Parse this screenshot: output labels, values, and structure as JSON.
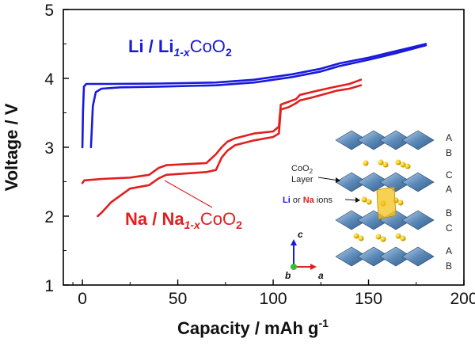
{
  "chart_data": {
    "type": "line",
    "xlabel": "Capacity  /  mAh g",
    "xlabel_sup": "-1",
    "ylabel": "Voltage  /  V",
    "xlim": [
      -10,
      200
    ],
    "ylim": [
      1,
      5
    ],
    "xticks": [
      0,
      50,
      100,
      150,
      200
    ],
    "yticks": [
      1,
      2,
      3,
      4,
      5
    ],
    "grid": false,
    "series": [
      {
        "name": "Li / Li1-xCoO2",
        "color": "#1a1adb",
        "curves": [
          {
            "x": [
              0,
              0.3,
              0.8,
              2,
              5,
              15,
              40,
              70,
              90,
              110,
              125,
              135,
              150,
              165,
              180
            ],
            "y": [
              3.0,
              3.5,
              3.88,
              3.92,
              3.92,
              3.92,
              3.925,
              3.94,
              3.98,
              4.06,
              4.14,
              4.22,
              4.3,
              4.4,
              4.5
            ]
          },
          {
            "x": [
              180,
              165,
              150,
              135,
              125,
              110,
              90,
              70,
              40,
              20,
              10,
              7,
              5.5,
              5,
              4.5
            ],
            "y": [
              4.48,
              4.37,
              4.27,
              4.18,
              4.1,
              4.02,
              3.94,
              3.9,
              3.88,
              3.87,
              3.85,
              3.8,
              3.6,
              3.3,
              3.0
            ]
          }
        ]
      },
      {
        "name": "Na / Na1-xCoO2",
        "color": "#e21f1f",
        "curves": [
          {
            "x": [
              0,
              1,
              10,
              25,
              35,
              40,
              44,
              65,
              70,
              73,
              76,
              80,
              90,
              100,
              103,
              104,
              108,
              112,
              114,
              120,
              128,
              133,
              140,
              146
            ],
            "y": [
              2.48,
              2.52,
              2.54,
              2.56,
              2.6,
              2.7,
              2.74,
              2.77,
              2.9,
              3.0,
              3.08,
              3.13,
              3.2,
              3.23,
              3.3,
              3.62,
              3.66,
              3.7,
              3.76,
              3.8,
              3.85,
              3.88,
              3.92,
              3.98
            ]
          },
          {
            "x": [
              146,
              140,
              133,
              128,
              120,
              114,
              112,
              108,
              104,
              103,
              100,
              90,
              80,
              76,
              73,
              70,
              65,
              44,
              40,
              35,
              25,
              15,
              10,
              8
            ],
            "y": [
              3.9,
              3.85,
              3.82,
              3.78,
              3.72,
              3.68,
              3.64,
              3.58,
              3.55,
              3.2,
              3.15,
              3.1,
              3.03,
              2.95,
              2.85,
              2.67,
              2.64,
              2.6,
              2.55,
              2.45,
              2.4,
              2.2,
              2.05,
              2.0
            ]
          }
        ]
      }
    ]
  },
  "annotations": {
    "li_label": {
      "prefix": "Li / Li",
      "sub": "1-x",
      "suffix": "CoO",
      "sub2": "2"
    },
    "na_label": {
      "prefix": "Na / Na",
      "sub": "1-x",
      "suffix": "CoO",
      "sub2": "2"
    }
  },
  "structure": {
    "stacking_right": [
      "A",
      "B",
      "C",
      "A",
      "B",
      "C",
      "A",
      "B"
    ],
    "layer_label_line1": "CoO",
    "layer_label_sub": "2",
    "layer_label_line2": "Layer",
    "ions_label_li": "Li",
    "ions_label_or": " or ",
    "ions_label_na": "Na",
    "ions_label_suffix": " ions",
    "axis_c": "c",
    "axis_a": "a",
    "axis_b": "b"
  }
}
